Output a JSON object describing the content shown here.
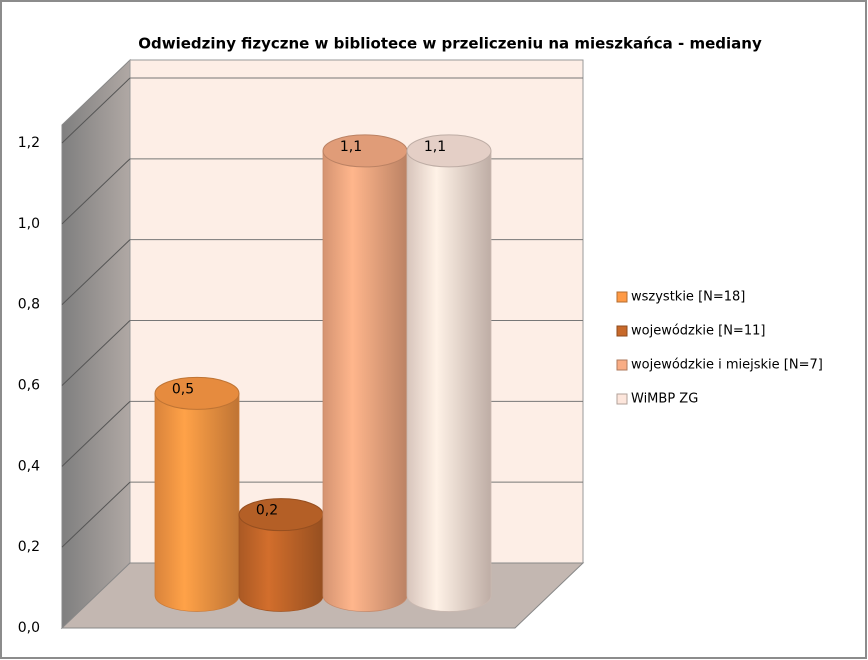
{
  "chart_data": {
    "type": "bar3d",
    "title": "Odwiedziny fizyczne w bibliotece w przeliczeniu na mieszkańca - mediany",
    "series": [
      {
        "name": "wszystkie [N=18]",
        "color": "#ff9a45",
        "values": [
          0.5
        ],
        "value_labels": [
          "0,5"
        ]
      },
      {
        "name": "wojewódzkie [N=11]",
        "color": "#c8692a",
        "values": [
          0.2
        ],
        "value_labels": [
          "0,2"
        ]
      },
      {
        "name": "wojewódzkie i miejskie [N=7]",
        "color": "#f9ad85",
        "values": [
          1.1
        ],
        "value_labels": [
          "1,1"
        ]
      },
      {
        "name": "WiMBP ZG",
        "color": "#fde6dc",
        "values": [
          1.1
        ],
        "value_labels": [
          "1,1"
        ]
      }
    ],
    "ylim": [
      0,
      1.2
    ],
    "yticks": [
      {
        "value": 0,
        "label": "0,0"
      },
      {
        "value": 0.2,
        "label": "0,2"
      },
      {
        "value": 0.4,
        "label": "0,4"
      },
      {
        "value": 0.6,
        "label": "0,6"
      },
      {
        "value": 0.8,
        "label": "0,8"
      },
      {
        "value": 1.0,
        "label": "1,0"
      },
      {
        "value": 1.2,
        "label": "1,2"
      }
    ],
    "grid": true,
    "legend": "right"
  }
}
